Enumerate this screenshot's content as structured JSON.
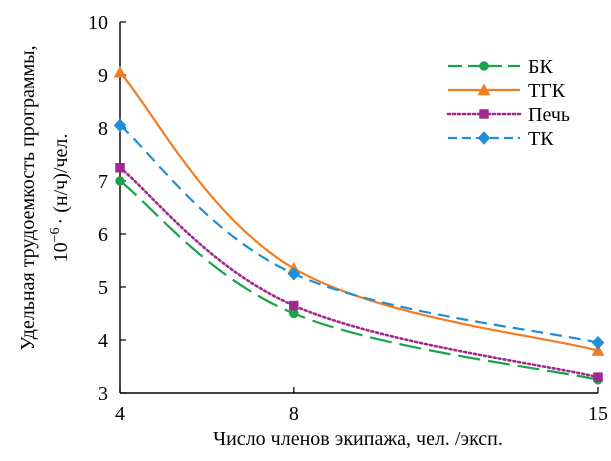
{
  "chart_data": {
    "type": "line",
    "title": "",
    "xlabel": "Число членов экипажа, чел. /эксп.",
    "ylabel_line1": "Удельная трудоемкость программы,",
    "ylabel_line2_prefix": "10",
    "ylabel_line2_exp": "−6",
    "ylabel_line2_suffix": "· (н/ч)/чел.",
    "categories": [
      "4",
      "8",
      "15"
    ],
    "xlim": [
      4,
      15
    ],
    "ylim": [
      3,
      10
    ],
    "yticks": [
      "3",
      "4",
      "5",
      "6",
      "7",
      "8",
      "9",
      "10"
    ],
    "grid": false,
    "legend_position": "top-right",
    "series": [
      {
        "name": "БК",
        "values": [
          7.0,
          4.5,
          3.25
        ],
        "color": "#1aa34a",
        "dash": "long-dash",
        "marker": "circle"
      },
      {
        "name": "ТГК",
        "values": [
          9.05,
          5.35,
          3.8
        ],
        "color": "#f47c20",
        "dash": "solid",
        "marker": "triangle"
      },
      {
        "name": "Печь",
        "values": [
          7.25,
          4.65,
          3.3
        ],
        "color": "#a0288f",
        "dash": "dotted",
        "marker": "square"
      },
      {
        "name": "ТК",
        "values": [
          8.05,
          5.25,
          3.95
        ],
        "color": "#1f8fd6",
        "dash": "dash",
        "marker": "diamond"
      }
    ]
  }
}
